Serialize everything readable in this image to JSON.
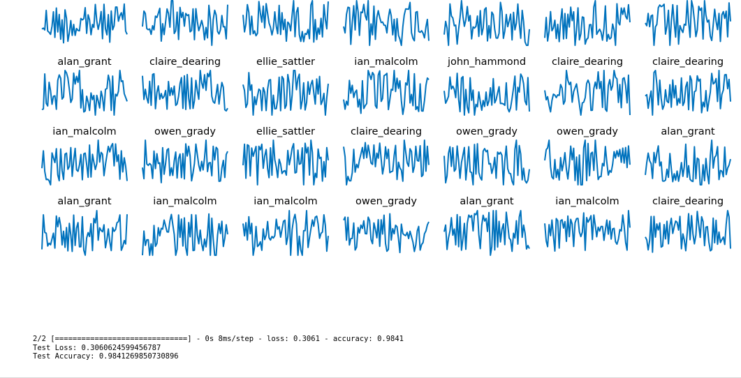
{
  "figure": {
    "line_color": "#0072bd",
    "label_rows": [
      [
        "alan_grant",
        "claire_dearing",
        "ellie_sattler",
        "ian_malcolm",
        "john_hammond",
        "claire_dearing",
        "claire_dearing"
      ],
      [
        "ian_malcolm",
        "owen_grady",
        "ellie_sattler",
        "claire_dearing",
        "owen_grady",
        "owen_grady",
        "alan_grant"
      ],
      [
        "alan_grant",
        "ian_malcolm",
        "ian_malcolm",
        "owen_grady",
        "alan_grant",
        "ian_malcolm",
        "claire_dearing"
      ]
    ]
  },
  "console": {
    "progress_line": "2/2 [==============================] - 0s 8ms/step - loss: 0.3061 - accuracy: 0.9841",
    "test_loss_line": "Test Loss: 0.3060624599456787",
    "test_accuracy_line": "Test Accuracy: 0.9841269850730896"
  }
}
